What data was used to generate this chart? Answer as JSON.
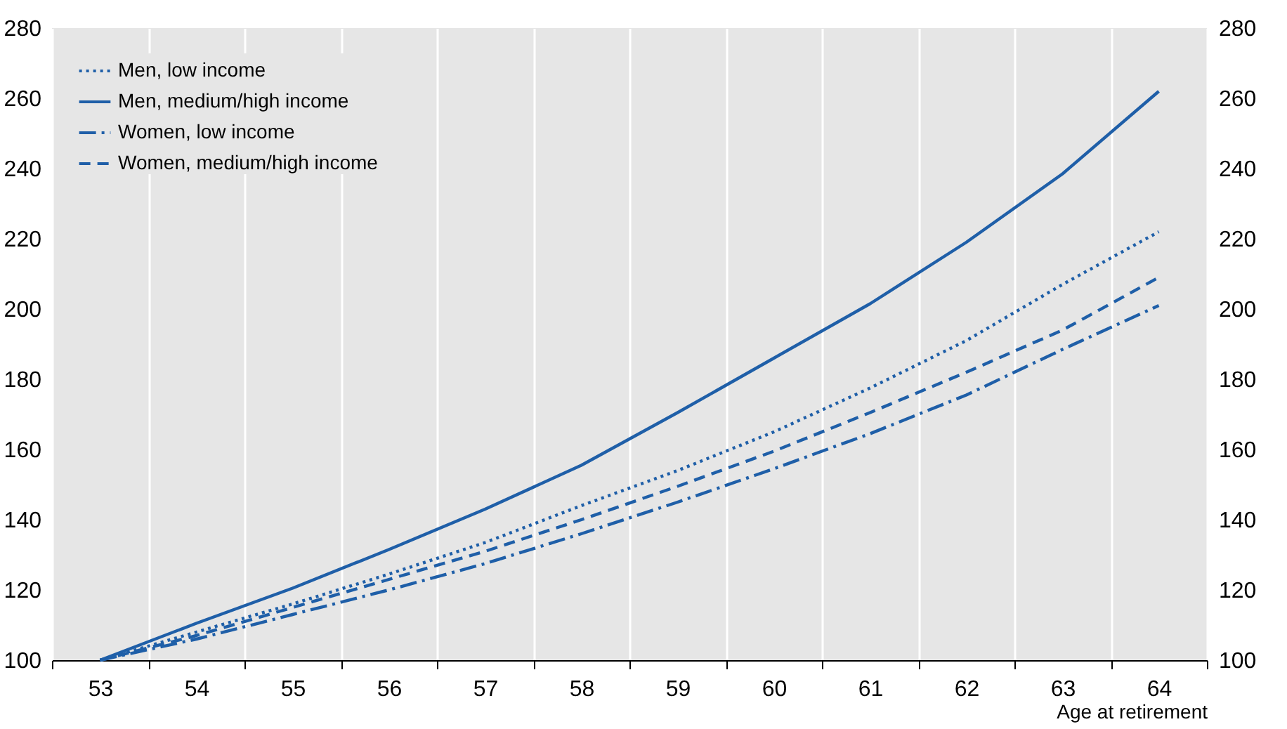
{
  "chart_data": {
    "type": "line",
    "xlabel": "Age at retirement",
    "categories": [
      "53",
      "54",
      "55",
      "56",
      "57",
      "58",
      "59",
      "60",
      "61",
      "62",
      "63",
      "64"
    ],
    "series": [
      {
        "name": "Men, low income",
        "color": "#1f5fa8",
        "line_style": "dotted",
        "values": [
          100,
          108,
          116,
          124.5,
          133.5,
          144,
          154,
          165,
          177.5,
          191,
          207,
          222
        ]
      },
      {
        "name": "Men, medium/high income",
        "color": "#1f5fa8",
        "line_style": "solid",
        "values": [
          100,
          110.5,
          120.5,
          131.5,
          143,
          155.5,
          170.5,
          186,
          201.5,
          219,
          238.5,
          262
        ]
      },
      {
        "name": "Women, low income",
        "color": "#1f5fa8",
        "line_style": "dashdot",
        "values": [
          100,
          106,
          113,
          120,
          127.5,
          136,
          145,
          154.5,
          164.5,
          175.5,
          188.5,
          201
        ]
      },
      {
        "name": "Women, medium/high income",
        "color": "#1f5fa8",
        "line_style": "dashed",
        "values": [
          100,
          107,
          115,
          123,
          131,
          140,
          149.5,
          159.5,
          170.5,
          182,
          194,
          209
        ]
      }
    ],
    "ylim": [
      100,
      280
    ],
    "yticks": [
      100,
      120,
      140,
      160,
      180,
      200,
      220,
      240,
      260,
      280
    ],
    "y2lim": [
      100,
      280
    ],
    "y2ticks": [
      100,
      120,
      140,
      160,
      180,
      200,
      220,
      240,
      260,
      280
    ],
    "grid": "x",
    "legend": "top left"
  }
}
